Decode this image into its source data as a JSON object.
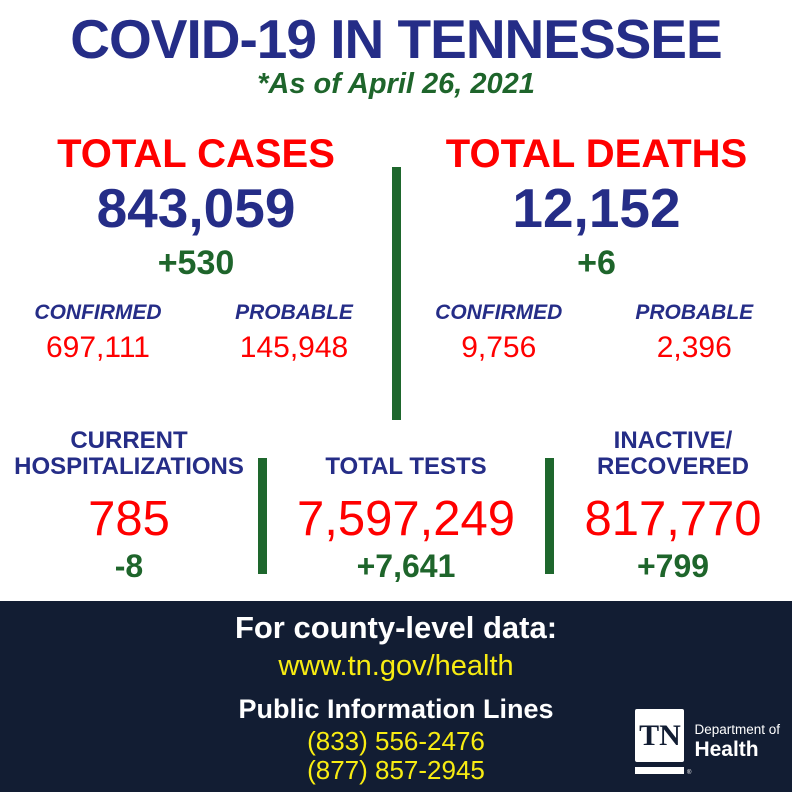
{
  "colors": {
    "navy": "#252D87",
    "red": "#FF0000",
    "green": "#1E652B",
    "divider_green": "#1E672D",
    "footer_bg": "#121D33",
    "yellow": "#F8EC12",
    "white": "#FFFFFF"
  },
  "header": {
    "title": "COVID-19 IN TENNESSEE",
    "subtitle": "*As of April 26, 2021"
  },
  "top_stats": {
    "cases": {
      "label": "TOTAL CASES",
      "value": "843,059",
      "delta": "+530",
      "confirmed_label": "CONFIRMED",
      "confirmed_value": "697,111",
      "probable_label": "PROBABLE",
      "probable_value": "145,948"
    },
    "deaths": {
      "label": "TOTAL DEATHS",
      "value": "12,152",
      "delta": "+6",
      "confirmed_label": "CONFIRMED",
      "confirmed_value": "9,756",
      "probable_label": "PROBABLE",
      "probable_value": "2,396"
    }
  },
  "middle_stats": {
    "hospitalizations": {
      "label_line1": "CURRENT",
      "label_line2": "HOSPITALIZATIONS",
      "value": "785",
      "delta": "-8"
    },
    "tests": {
      "label": "TOTAL TESTS",
      "value": "7,597,249",
      "delta": "+7,641"
    },
    "inactive": {
      "label_line1": "INACTIVE/",
      "label_line2": "RECOVERED",
      "value": "817,770",
      "delta": "+799"
    }
  },
  "footer": {
    "heading": "For county-level data:",
    "url": "www.tn.gov/health",
    "info_lines_label": "Public Information Lines",
    "phone1": "(833) 556-2476",
    "phone2": "(877) 857-2945",
    "logo": {
      "tn": "TN",
      "reg": "®",
      "dept": "Department of",
      "health": "Health"
    }
  },
  "chart_data": {
    "type": "table",
    "title": "COVID-19 in Tennessee",
    "as_of": "April 26, 2021",
    "metrics": [
      {
        "name": "Total Cases",
        "value": 843059,
        "change": 530,
        "confirmed": 697111,
        "probable": 145948
      },
      {
        "name": "Total Deaths",
        "value": 12152,
        "change": 6,
        "confirmed": 9756,
        "probable": 2396
      },
      {
        "name": "Current Hospitalizations",
        "value": 785,
        "change": -8
      },
      {
        "name": "Total Tests",
        "value": 7597249,
        "change": 7641
      },
      {
        "name": "Inactive/Recovered",
        "value": 817770,
        "change": 799
      }
    ]
  }
}
